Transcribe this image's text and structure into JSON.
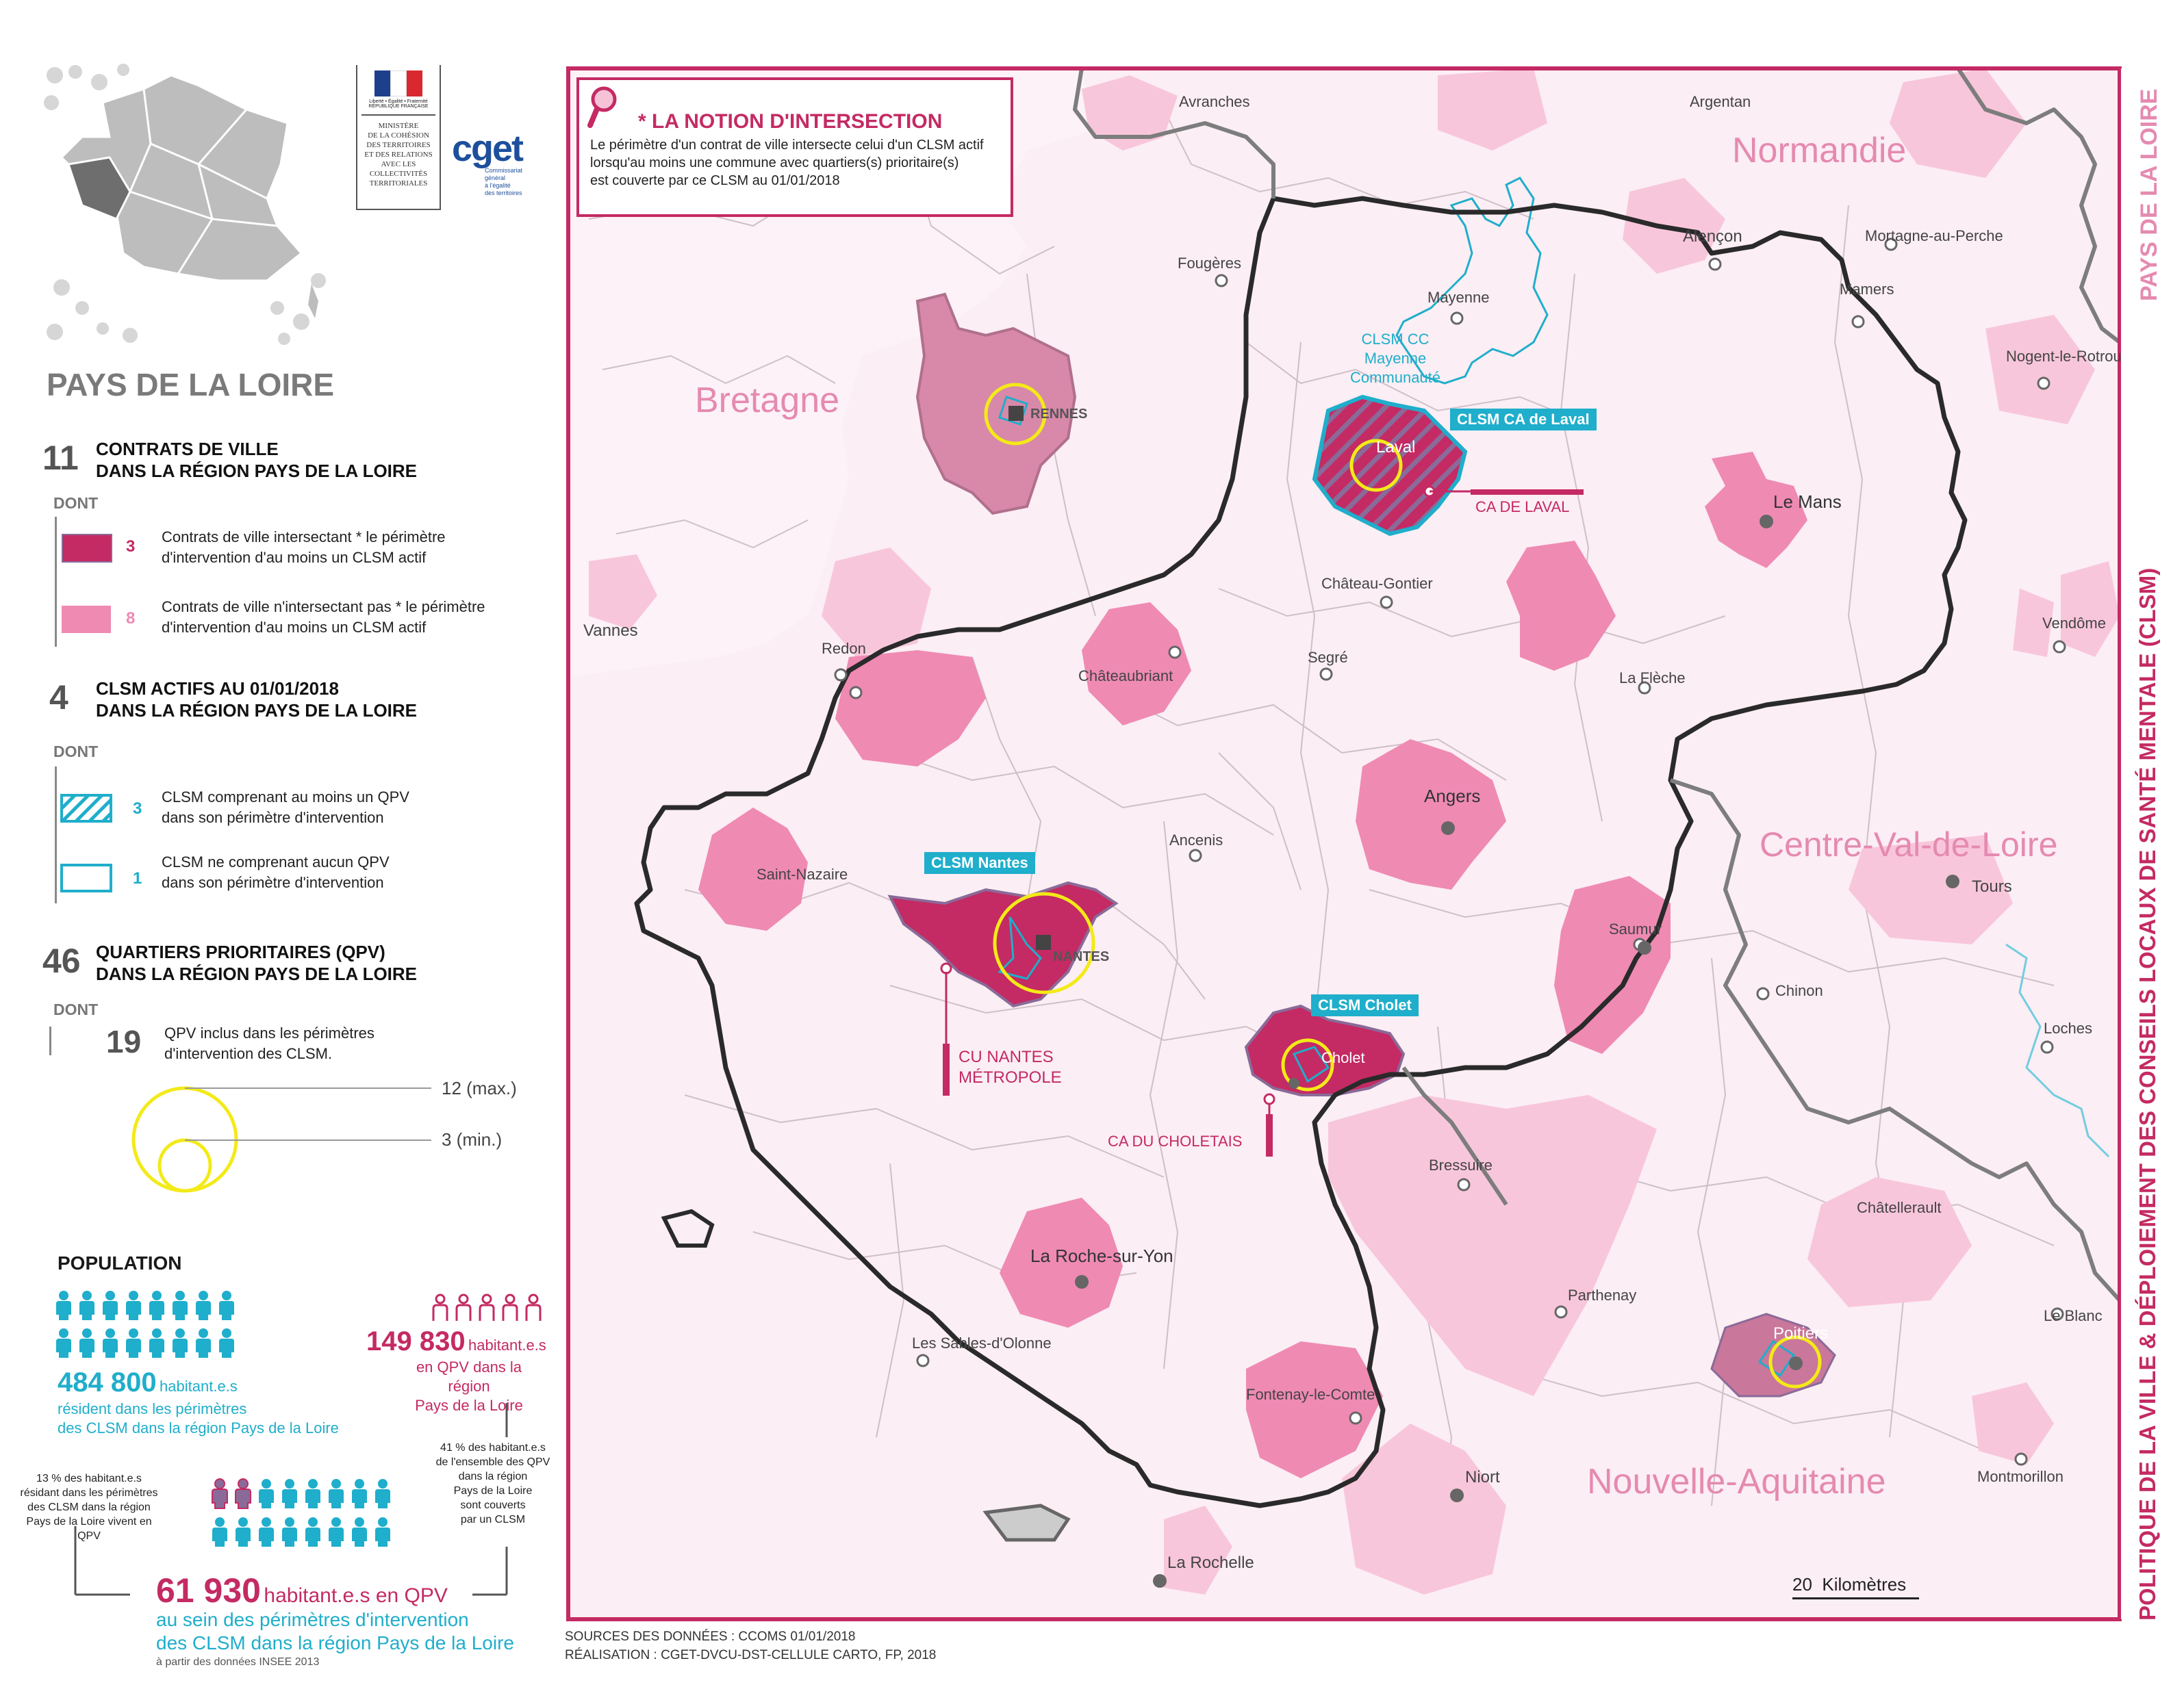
{
  "header": {
    "ministry_line1": "MINISTÈRE",
    "ministry_line2": "DE LA COHÉSION",
    "ministry_line3": "DES TERRITOIRES",
    "ministry_line4": "ET DES RELATIONS",
    "ministry_line5": "AVEC LES",
    "ministry_line6": "COLLECTIVITÉS",
    "ministry_line7": "TERRITORIALES",
    "cget_logo": "cget",
    "cget_sub1": "Commissariat",
    "cget_sub2": "général",
    "cget_sub3": "à l'égalité",
    "cget_sub4": "des territoires",
    "marianne_motto": "Liberté • Égalité • Fraternité",
    "marianne_country": "RÉPUBLIQUE FRANÇAISE"
  },
  "region_title": "PAYS DE LA LOIRE",
  "contrats": {
    "count": "11",
    "title1": "CONTRATS DE VILLE",
    "title2": "DANS LA RÉGION PAYS DE LA LOIRE",
    "dont": "DONT",
    "item1_count": "3",
    "item1_l1": "Contrats de ville intersectant * le périmètre",
    "item1_l2": "d'intervention d'au moins un CLSM actif",
    "item2_count": "8",
    "item2_l1": "Contrats de ville n'intersectant pas * le périmètre",
    "item2_l2": "d'intervention d'au moins un CLSM actif"
  },
  "clsm": {
    "count": "4",
    "title1": "CLSM ACTIFS AU 01/01/2018",
    "title2": "DANS LA RÉGION PAYS DE LA LOIRE",
    "dont": "DONT",
    "item1_count": "3",
    "item1_l1": "CLSM comprenant au moins un QPV",
    "item1_l2": "dans son périmètre d'intervention",
    "item2_count": "1",
    "item2_l1": "CLSM ne comprenant aucun QPV",
    "item2_l2": "dans son périmètre d'intervention"
  },
  "qpv": {
    "count": "46",
    "title1": "QUARTIERS PRIORITAIRES (QPV)",
    "title2": "DANS LA RÉGION PAYS DE LA LOIRE",
    "dont": "DONT",
    "inclus_count": "19",
    "inclus_l1": "QPV inclus dans les périmètres",
    "inclus_l2": "d'intervention des CLSM.",
    "circle_max": "12 (max.)",
    "circle_min": "3 (min.)"
  },
  "population": {
    "title": "POPULATION",
    "clsm_value": "484 800",
    "clsm_unit": "habitant.e.s",
    "clsm_l1": "résident dans les périmètres",
    "clsm_l2": "des CLSM dans la région Pays de la Loire",
    "qpv_value": "149 830",
    "qpv_unit": "habitant.e.s",
    "qpv_l1": "en QPV dans la région",
    "qpv_l2": "Pays de la Loire",
    "note13_l1": "13 % des habitant.e.s",
    "note13_l2": "résidant dans les périmètres",
    "note13_l3": "des CLSM dans la région",
    "note13_l4": "Pays de la Loire vivent en QPV",
    "note41_l1": "41 % des habitant.e.s",
    "note41_l2": "de l'ensemble des QPV",
    "note41_l3": "dans la région",
    "note41_l4": "Pays de la Loire",
    "note41_l5": "sont couverts",
    "note41_l6": "par un CLSM",
    "inter_value": "61 930",
    "inter_unit": "habitant.e.s en QPV",
    "inter_l1": "au sein des périmètres d'intervention",
    "inter_l2": "des CLSM dans la région Pays de la Loire",
    "inter_src": "à partir des données INSEE 2013"
  },
  "notion": {
    "title": "* LA NOTION D'INTERSECTION",
    "l1": "Le périmètre d'un contrat de ville intersecte celui d'un CLSM actif",
    "l2": "lorsqu'au moins une commune avec quartiers(s) prioritaire(s)",
    "l3": "est couverte par ce CLSM au 01/01/2018"
  },
  "regions": {
    "normandie": "Normandie",
    "bretagne": "Bretagne",
    "centre": "Centre-Val-de-Loire",
    "nouvelle": "Nouvelle-Aquitaine"
  },
  "cities": {
    "avranches": "Avranches",
    "argentan": "Argentan",
    "alencon": "Alençon",
    "mortagne": "Mortagne-au-Perche",
    "mamers": "Mamers",
    "nogent": "Nogent-le-Rotrou",
    "fougeres": "Fougères",
    "mayenne": "Mayenne",
    "rennes": "RENNES",
    "laval": "Laval",
    "lemans": "Le Mans",
    "vannes": "Vannes",
    "redon": "Redon",
    "chateaubriant": "Châteaubriant",
    "chateaugontier": "Château-Gontier",
    "segre": "Segré",
    "lafleche": "La Flèche",
    "vendome": "Vendôme",
    "angers": "Angers",
    "ancenis": "Ancenis",
    "saintnazaire": "Saint-Nazaire",
    "nantes": "NANTES",
    "saumur": "Saumur",
    "tours": "Tours",
    "chinon": "Chinon",
    "loches": "Loches",
    "cholet": "Cholet",
    "bressuire": "Bressuire",
    "chatellerault": "Châtellerault",
    "larochesuryon": "La Roche-sur-Yon",
    "parthenay": "Parthenay",
    "leblanc": "Le Blanc",
    "poitiers": "Poitiers",
    "sablesdolonne": "Les Sables-d'Olonne",
    "fontenay": "Fontenay-le-Comte",
    "niort": "Niort",
    "montmorillon": "Montmorillon",
    "larochelle": "La Rochelle"
  },
  "map_labels": {
    "clsm_mayenne_l1": "CLSM CC Mayenne",
    "clsm_mayenne_l2": "Communauté",
    "clsm_laval": "CLSM CA de Laval",
    "ca_laval": "CA DE LAVAL",
    "clsm_nantes": "CLSM Nantes",
    "cu_nantes_l1": "CU NANTES",
    "cu_nantes_l2": "MÉTROPOLE",
    "clsm_cholet": "CLSM Cholet",
    "ca_choletais": "CA DU CHOLETAIS"
  },
  "scale": "20  Kilomètres",
  "sources_l1": "SOURCES DES DONNÉES : CCOMS 01/01/2018",
  "sources_l2": "RÉALISATION : CGET-DVCU-DST-CELLULE CARTO, FP, 2018",
  "side_title_grey": "PAYS DE LA LOIRE",
  "side_title": "POLITIQUE DE LA VILLE & DÉPLOIEMENT DES CONSEILS LOCAUX DE SANTÉ MENTALE (CLSM)",
  "colors": {
    "dark": "#c42a63",
    "mid": "#ef8ab3",
    "light": "#f8c6da",
    "bg": "#fceff5",
    "cyan": "#1faecb",
    "yellow": "#f3ea18",
    "frame": "#c42a63"
  }
}
